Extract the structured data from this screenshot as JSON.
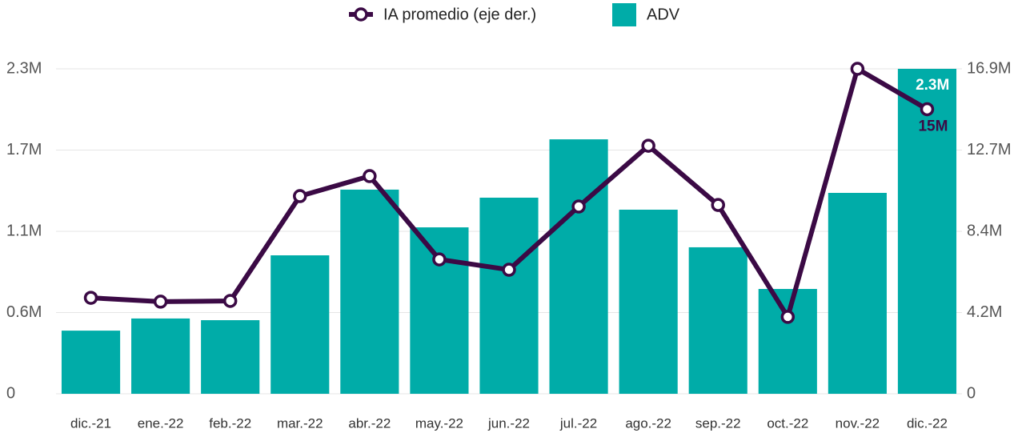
{
  "chart_data": {
    "type": "bar-line",
    "categories": [
      "dic.-21",
      "ene.-22",
      "feb.-22",
      "mar.-22",
      "abr.-22",
      "may.-22",
      "jun.-22",
      "jul.-22",
      "ago.-22",
      "sep.-22",
      "oct.-22",
      "nov.-22",
      "dic.-22"
    ],
    "series": [
      {
        "name": "IA promedio (eje der.)",
        "type": "line",
        "axis": "y2",
        "color": "#3b0a45",
        "values": [
          4990000,
          4790000,
          4830000,
          10280000,
          11320000,
          6990000,
          6450000,
          9740000,
          12900000,
          9820000,
          4000000,
          16900000,
          14800000
        ],
        "value_labels": [
          null,
          null,
          null,
          null,
          null,
          null,
          null,
          null,
          null,
          null,
          null,
          null,
          "15M"
        ]
      },
      {
        "name": "ADV",
        "type": "bar",
        "axis": "y",
        "color": "#00aca8",
        "values": [
          447000,
          533000,
          521000,
          980000,
          1445000,
          1178000,
          1388000,
          1801000,
          1303000,
          1037000,
          742000,
          1422000,
          2300000
        ],
        "value_labels": [
          null,
          null,
          null,
          null,
          null,
          null,
          null,
          null,
          null,
          null,
          null,
          null,
          "2.3M"
        ]
      }
    ],
    "ylim": [
      0,
      2300000
    ],
    "yticks": [
      0,
      {
        "value": 575000,
        "label": "0.6M"
      },
      {
        "value": 1150000,
        "label": "1.1M"
      },
      {
        "value": 1725000,
        "label": "1.7M"
      },
      {
        "value": 2300000,
        "label": "2.3M"
      }
    ],
    "y2lim": [
      0,
      16900000
    ],
    "y2ticks": [
      0,
      {
        "value": 4225000,
        "label": "4.2M"
      },
      {
        "value": 8450000,
        "label": "8.4M"
      },
      {
        "value": 12675000,
        "label": "12.7M"
      },
      {
        "value": 16900000,
        "label": "16.9M"
      }
    ],
    "grid": true
  }
}
